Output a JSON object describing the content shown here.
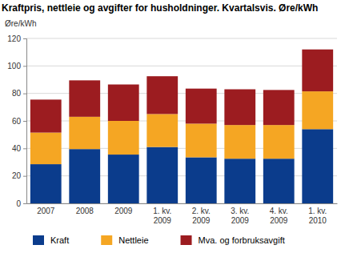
{
  "chart_data": {
    "type": "bar",
    "stacked": true,
    "title": "Kraftpris, nettleie og avgifter for husholdninger. Kvartalsvis. Øre/kWh",
    "y_label": "Øre/kWh",
    "categories": [
      "2007",
      "2008",
      "2009",
      "1. kv. 2009",
      "2. kv. 2009",
      "3. kv. 2009",
      "4. kv. 2009",
      "1. kv. 2010"
    ],
    "series": [
      {
        "name": "Kraft",
        "color": "#0b3c8c",
        "values": [
          28.5,
          39.5,
          35.5,
          41,
          33.5,
          32.5,
          32.5,
          54
        ]
      },
      {
        "name": "Nettleie",
        "color": "#f5a623",
        "values": [
          23,
          23.5,
          24.5,
          24,
          24.5,
          24.5,
          24.5,
          27.5
        ]
      },
      {
        "name": "Mva. og forbruksavgift",
        "color": "#9c1c20",
        "values": [
          24,
          26.5,
          26.5,
          27.5,
          25.5,
          26,
          25.5,
          30.5
        ]
      }
    ],
    "ylim": [
      0,
      120
    ],
    "yticks": [
      0,
      20,
      40,
      60,
      80,
      100,
      120
    ],
    "grid": true,
    "legend": "bottom"
  }
}
